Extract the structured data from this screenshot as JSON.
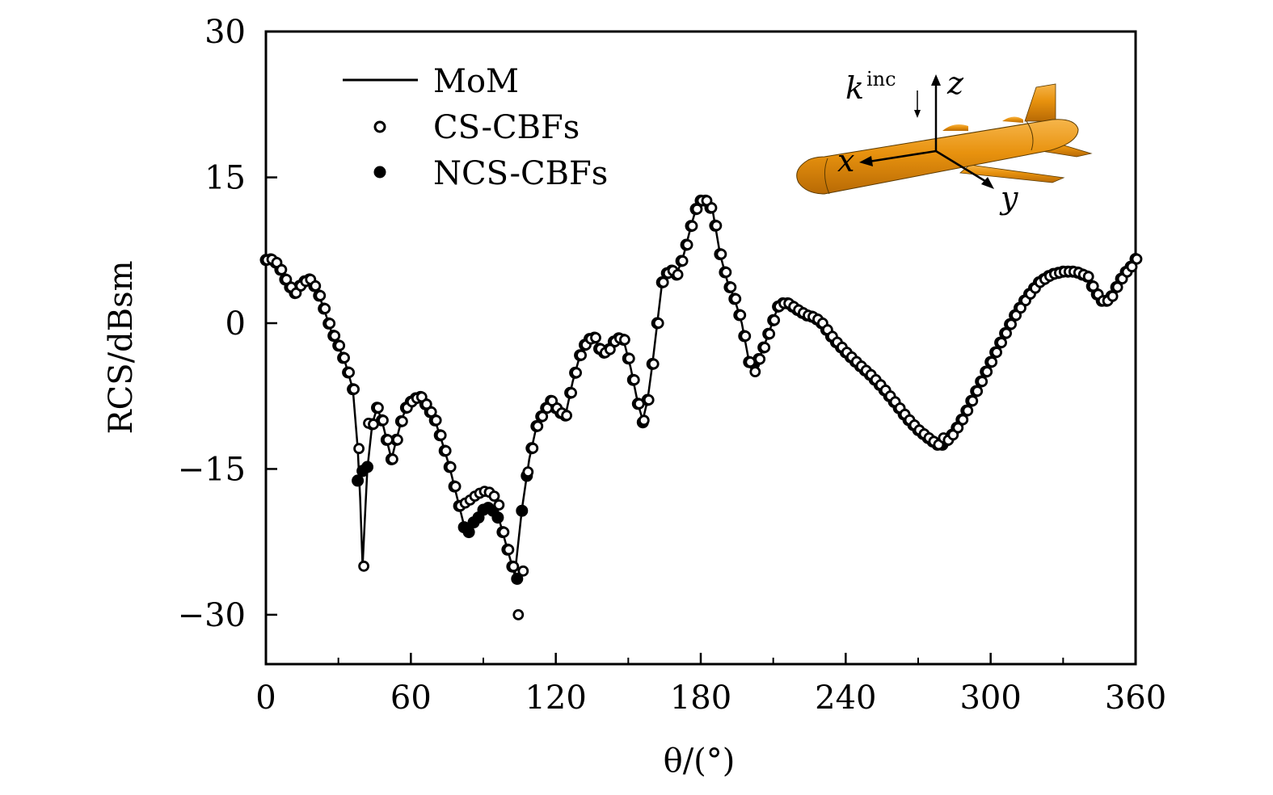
{
  "chart_data": {
    "type": "line",
    "title": "",
    "xlabel": "θ/(°)",
    "ylabel": "RCS/dBsm",
    "xlim": [
      0,
      360
    ],
    "ylim": [
      -35,
      30
    ],
    "xticks": [
      0,
      60,
      120,
      180,
      240,
      300,
      360
    ],
    "xticks_minor": [
      30,
      90,
      150,
      210,
      270,
      330
    ],
    "yticks": [
      30,
      15,
      0,
      -15,
      -30
    ],
    "ytick_labels": [
      "30",
      "15",
      "0",
      "−15",
      "−30"
    ],
    "xtick_labels": [
      "0",
      "60",
      "120",
      "180",
      "240",
      "300",
      "360"
    ],
    "grid": false,
    "legend": {
      "position": "top-left",
      "entries": [
        {
          "name": "MoM",
          "style": "solid-line"
        },
        {
          "name": "CS-CBFs",
          "style": "open-circle"
        },
        {
          "name": "NCS-CBFs",
          "style": "filled-circle"
        }
      ]
    },
    "inset": {
      "description": "orange missile model with coordinate axes",
      "labels": {
        "k": "k",
        "k_sup": "inc",
        "x": "x",
        "y": "y",
        "z": "z"
      },
      "body_color": "#E8920E"
    },
    "marker_step_deg": 2,
    "series": [
      {
        "name": "MoM",
        "x": [
          0,
          3,
          6,
          9,
          12,
          15,
          18,
          21,
          24,
          27,
          30,
          33,
          36,
          38,
          39,
          40,
          41,
          42,
          44,
          46,
          48,
          50,
          52,
          54,
          56,
          58,
          61,
          64,
          67,
          70,
          73,
          76,
          79,
          82,
          85,
          88,
          91,
          94,
          97,
          100,
          103,
          106,
          109,
          112,
          115,
          118,
          121,
          124,
          127,
          130,
          133,
          136,
          139,
          142,
          145,
          148,
          151,
          154,
          156,
          158,
          160,
          162,
          164,
          167,
          170,
          173,
          176,
          179,
          182,
          185,
          188,
          191,
          194,
          197,
          200,
          203,
          206,
          209,
          212,
          215,
          218,
          221,
          224,
          227,
          230,
          235,
          240,
          245,
          250,
          255,
          260,
          265,
          270,
          275,
          278,
          281,
          284,
          287,
          290,
          295,
          300,
          305,
          310,
          315,
          320,
          325,
          330,
          335,
          340,
          343,
          346,
          349,
          352,
          355,
          358,
          360
        ],
        "y": [
          6.5,
          6.6,
          5.5,
          4.0,
          3.1,
          4.2,
          4.5,
          3.5,
          1.5,
          -0.8,
          -2.3,
          -4.2,
          -6.8,
          -12.9,
          -18,
          -25,
          -20,
          -15,
          -10.4,
          -8.7,
          -10,
          -12,
          -14,
          -12,
          -10.1,
          -8.7,
          -7.8,
          -7.6,
          -8.7,
          -10,
          -12.3,
          -14.8,
          -17.8,
          -20.8,
          -20.6,
          -19.8,
          -19.1,
          -19.3,
          -20.6,
          -23.3,
          -25.9,
          -19.1,
          -14,
          -10.6,
          -9.1,
          -8,
          -9.1,
          -9.5,
          -6,
          -3.3,
          -1.7,
          -1.5,
          -3.2,
          -2.7,
          -1.5,
          -1.7,
          -4.6,
          -8.3,
          -10,
          -7.9,
          -4.2,
          0,
          4.2,
          5.6,
          5,
          7.1,
          10,
          12.6,
          12.6,
          11.5,
          7.1,
          4.3,
          2.5,
          0,
          -4,
          -4.3,
          -2.5,
          -0.4,
          1.7,
          2.2,
          1.7,
          1.2,
          0.8,
          0.6,
          0,
          -1.7,
          -3,
          -4.2,
          -5.3,
          -6.6,
          -8.1,
          -9.7,
          -11,
          -12,
          -12.5,
          -12.3,
          -11.5,
          -10.4,
          -9,
          -6.5,
          -4,
          -1.5,
          0.8,
          2.7,
          4.2,
          5,
          5.3,
          5.3,
          4.8,
          3.3,
          2.3,
          2.3,
          3.7,
          5,
          5.8,
          6.6
        ]
      },
      {
        "name": "CS-CBFs",
        "note": "follows MoM at every 2° marker except listed deviations",
        "deviations": [
          {
            "x": 38,
            "y": -12.9
          },
          {
            "x": 40,
            "y": -25
          },
          {
            "x": 42,
            "y": -10.3
          },
          {
            "x": 82,
            "y": -18.5
          },
          {
            "x": 84,
            "y": -18.2
          },
          {
            "x": 86,
            "y": -17.8
          },
          {
            "x": 88,
            "y": -17.5
          },
          {
            "x": 90,
            "y": -17.3
          },
          {
            "x": 92,
            "y": -17.4
          },
          {
            "x": 94,
            "y": -17.8
          },
          {
            "x": 96,
            "y": -18.7
          },
          {
            "x": 104,
            "y": -30
          },
          {
            "x": 106,
            "y": -25.5
          },
          {
            "x": 108,
            "y": -15.3
          },
          {
            "x": 202,
            "y": -5
          },
          {
            "x": 280,
            "y": -11.8
          }
        ]
      },
      {
        "name": "NCS-CBFs",
        "note": "follows MoM at every 2° marker except listed deviations",
        "deviations": [
          {
            "x": 38,
            "y": -16.2
          },
          {
            "x": 40,
            "y": -15.2
          },
          {
            "x": 42,
            "y": -14.8
          },
          {
            "x": 82,
            "y": -21
          },
          {
            "x": 84,
            "y": -21.5
          },
          {
            "x": 86,
            "y": -20.5
          },
          {
            "x": 88,
            "y": -20
          },
          {
            "x": 90,
            "y": -19.2
          },
          {
            "x": 92,
            "y": -19
          },
          {
            "x": 94,
            "y": -19.3
          },
          {
            "x": 96,
            "y": -20
          },
          {
            "x": 104,
            "y": -26.3
          },
          {
            "x": 106,
            "y": -19.3
          },
          {
            "x": 156,
            "y": -10.2
          },
          {
            "x": 280,
            "y": -12.5
          }
        ]
      }
    ]
  }
}
